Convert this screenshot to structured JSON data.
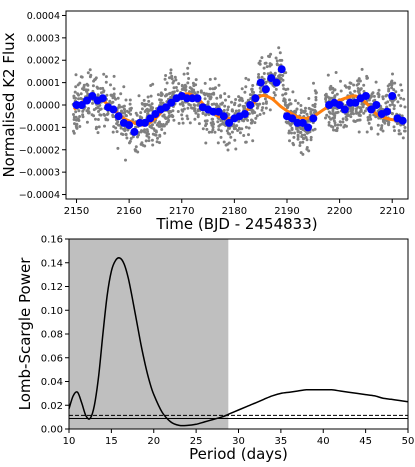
{
  "chart_data": [
    {
      "type": "scatter",
      "title": "",
      "xlabel": "Time (BJD - 2454833)",
      "ylabel": "Normalised K2 Flux",
      "xlim": [
        2148,
        2213
      ],
      "ylim": [
        -0.00042,
        0.00042
      ],
      "xticks": [
        2150,
        2160,
        2170,
        2180,
        2190,
        2200,
        2210
      ],
      "xtick_labels": [
        "2150",
        "2160",
        "2170",
        "2180",
        "2190",
        "2200",
        "2210"
      ],
      "yticks": [
        -0.0004,
        -0.0003,
        -0.0002,
        -0.0001,
        0.0,
        0.0001,
        0.0002,
        0.0003,
        0.0004
      ],
      "ytick_labels": [
        "−0.0004",
        "−0.0003",
        "−0.0002",
        "−0.0001",
        "0.0000",
        "0.0001",
        "0.0002",
        "0.0003",
        "0.0004"
      ],
      "grid": false,
      "colors": {
        "raw": "#808080",
        "binned": "#0000ff",
        "model": "#ff7f0e"
      },
      "series": [
        {
          "role": "binned",
          "marker": "circle",
          "x": [
            2150.0,
            2151.0,
            2152.0,
            2153.0,
            2154.0,
            2155.0,
            2156.0,
            2157.0,
            2158.0,
            2159.0,
            2160.0,
            2161.0,
            2162.0,
            2163.0,
            2164.0,
            2165.0,
            2166.0,
            2167.0,
            2168.0,
            2169.0,
            2170.0,
            2171.0,
            2172.0,
            2173.0,
            2174.0,
            2175.0,
            2176.0,
            2177.0,
            2178.0,
            2179.0,
            2180.0,
            2181.0,
            2182.0,
            2183.0,
            2184.0,
            2185.0,
            2186.0,
            2187.0,
            2188.0,
            2189.0,
            2190.0,
            2191.0,
            2192.0,
            2193.0,
            2194.0,
            2195.0,
            2198.0,
            2199.0,
            2200.0,
            2201.0,
            2202.0,
            2203.0,
            2204.0,
            2205.0,
            2206.0,
            2207.0,
            2208.0,
            2209.0,
            2210.0,
            2211.0,
            2212.0
          ],
          "y": [
            0.0,
            0.0,
            2e-05,
            4e-05,
            2e-05,
            3e-05,
            -1e-05,
            -2e-05,
            -5e-05,
            -8e-05,
            -9e-05,
            -0.00012,
            -8e-05,
            -8e-05,
            -6e-05,
            -4e-05,
            -2e-05,
            -1e-05,
            1e-05,
            3e-05,
            4e-05,
            3e-05,
            3e-05,
            3e-05,
            -1e-05,
            -2e-05,
            -3e-05,
            -3e-05,
            -5e-05,
            -8e-05,
            -6e-05,
            -5e-05,
            -4e-05,
            0.0,
            3e-05,
            0.0001,
            7e-05,
            0.00012,
            0.0001,
            0.00016,
            -5e-05,
            -6e-05,
            -8e-05,
            -8e-05,
            -0.0001,
            -6e-05,
            0.0,
            1e-05,
            0.0,
            -2e-05,
            1e-05,
            1e-05,
            3e-05,
            4e-05,
            -2e-05,
            0.0,
            -4e-05,
            -3e-05,
            4e-05,
            -6e-05,
            -7e-05
          ]
        },
        {
          "role": "model",
          "type": "line",
          "x": [
            2149.5,
            2151.0,
            2153.0,
            2155.0,
            2157.0,
            2159.0,
            2161.0,
            2163.0,
            2165.0,
            2167.0,
            2169.0,
            2171.0,
            2173.0,
            2175.0,
            2177.0,
            2179.0,
            2181.0,
            2183.0,
            2185.0,
            2187.0,
            2189.0,
            2191.0,
            2193.0,
            2195.0,
            2197.0,
            2199.0,
            2201.0,
            2203.0,
            2205.0,
            2207.0,
            2209.0,
            2211.0,
            2212.5
          ],
          "y": [
            -2e-05,
            1e-05,
            3e-05,
            2e-05,
            -2e-05,
            -6e-05,
            -8e-05,
            -9e-05,
            -6e-05,
            -1e-05,
            3e-05,
            5e-05,
            3e-05,
            -2e-05,
            -5e-05,
            -6e-05,
            -5e-05,
            -1e-05,
            4e-05,
            3e-05,
            -1e-05,
            -4e-05,
            -6e-05,
            -5e-05,
            -2e-05,
            1e-05,
            3e-05,
            4e-05,
            1e-05,
            -4e-05,
            -6e-05,
            -7e-05,
            -8e-05
          ]
        }
      ]
    },
    {
      "type": "line",
      "title": "",
      "xlabel": "Period (days)",
      "ylabel": "Lomb-Scargle Power",
      "xlim": [
        10,
        50
      ],
      "ylim": [
        0.0,
        0.16
      ],
      "xticks": [
        10,
        15,
        20,
        25,
        30,
        35,
        40,
        45,
        50
      ],
      "xtick_labels": [
        "10",
        "15",
        "20",
        "25",
        "30",
        "35",
        "40",
        "45",
        "50"
      ],
      "yticks": [
        0.0,
        0.02,
        0.04,
        0.06,
        0.08,
        0.1,
        0.12,
        0.14,
        0.16
      ],
      "ytick_labels": [
        "0.00",
        "0.02",
        "0.04",
        "0.06",
        "0.08",
        "0.10",
        "0.12",
        "0.14",
        "0.16"
      ],
      "grid": false,
      "shaded_region": {
        "x": [
          10,
          28.8
        ],
        "color": "#bfbfbf"
      },
      "series": [
        {
          "role": "power",
          "x": [
            10,
            10.5,
            11,
            11.5,
            12,
            12.5,
            13,
            13.5,
            14,
            14.5,
            15,
            15.5,
            16,
            16.5,
            17,
            17.5,
            18,
            18.5,
            19,
            19.5,
            20,
            21,
            22,
            23,
            24,
            25,
            26,
            27,
            28,
            29,
            30,
            31,
            32,
            33,
            34,
            35,
            36,
            37,
            38,
            39,
            40,
            41,
            42,
            43,
            44,
            45,
            46,
            47,
            48,
            49,
            50
          ],
          "y": [
            0.017,
            0.028,
            0.031,
            0.022,
            0.011,
            0.009,
            0.02,
            0.045,
            0.08,
            0.112,
            0.133,
            0.142,
            0.144,
            0.139,
            0.127,
            0.109,
            0.09,
            0.071,
            0.054,
            0.04,
            0.029,
            0.014,
            0.006,
            0.003,
            0.003,
            0.004,
            0.006,
            0.008,
            0.01,
            0.013,
            0.016,
            0.019,
            0.022,
            0.025,
            0.028,
            0.03,
            0.031,
            0.032,
            0.033,
            0.033,
            0.033,
            0.033,
            0.032,
            0.031,
            0.03,
            0.029,
            0.028,
            0.026,
            0.025,
            0.024,
            0.023
          ]
        },
        {
          "role": "threshold-dashed",
          "value": 0.0115
        },
        {
          "role": "threshold-solid",
          "value": 0.0088
        }
      ]
    }
  ]
}
